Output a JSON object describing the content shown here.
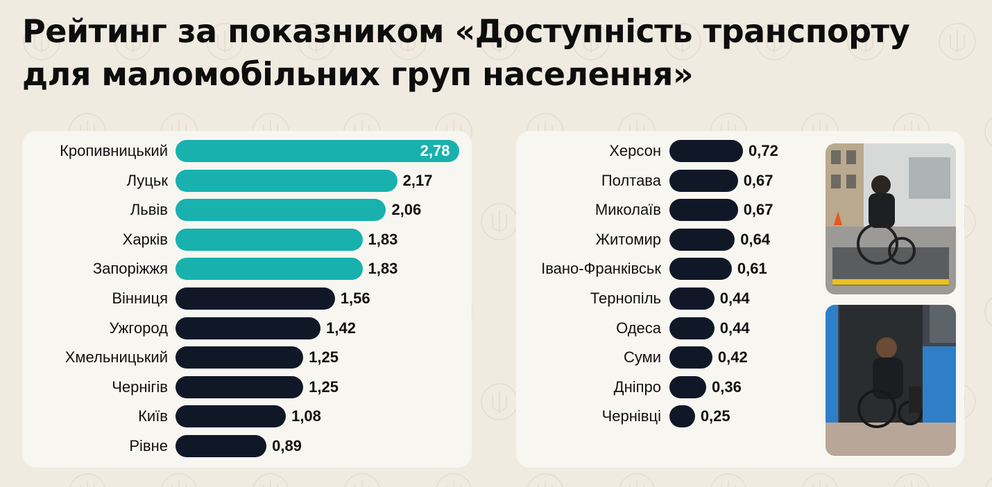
{
  "title": "Рейтинг за показником «Доступність транспорту для маломобільних груп населення»",
  "colors": {
    "teal": "#18b1ad",
    "dark": "#101828",
    "background": "#efebe0",
    "panel": "#f8f6f0"
  },
  "images": [
    {
      "name": "photo-wheelchair-ramp"
    },
    {
      "name": "photo-wheelchair-bus"
    }
  ],
  "chart_data": [
    {
      "type": "bar",
      "orientation": "horizontal",
      "title": "",
      "xlabel": "",
      "ylabel": "",
      "xlim": [
        0,
        2.78
      ],
      "grid": false,
      "categories": [
        "Кропивницький",
        "Луцьк",
        "Львів",
        "Харків",
        "Запоріжжя",
        "Вінниця",
        "Ужгород",
        "Хмельницький",
        "Чернігів",
        "Київ",
        "Рівне"
      ],
      "values": [
        2.78,
        2.17,
        2.06,
        1.83,
        1.83,
        1.56,
        1.42,
        1.25,
        1.25,
        1.08,
        0.89
      ],
      "labels": [
        "2,78",
        "2,17",
        "2,06",
        "1,83",
        "1,83",
        "1,56",
        "1,42",
        "1,25",
        "1,25",
        "1,08",
        "0,89"
      ],
      "highlight_count": 5
    },
    {
      "type": "bar",
      "orientation": "horizontal",
      "title": "",
      "xlabel": "",
      "ylabel": "",
      "xlim": [
        0,
        2.78
      ],
      "grid": false,
      "categories": [
        "Херсон",
        "Полтава",
        "Миколаїв",
        "Житомир",
        "Івано-Франківськ",
        "Тернопіль",
        "Одеса",
        "Суми",
        "Дніпро",
        "Чернівці"
      ],
      "values": [
        0.72,
        0.67,
        0.67,
        0.64,
        0.61,
        0.44,
        0.44,
        0.42,
        0.36,
        0.25
      ],
      "labels": [
        "0,72",
        "0,67",
        "0,67",
        "0,64",
        "0,61",
        "0,44",
        "0,44",
        "0,42",
        "0,36",
        "0,25"
      ],
      "highlight_count": 0
    }
  ]
}
